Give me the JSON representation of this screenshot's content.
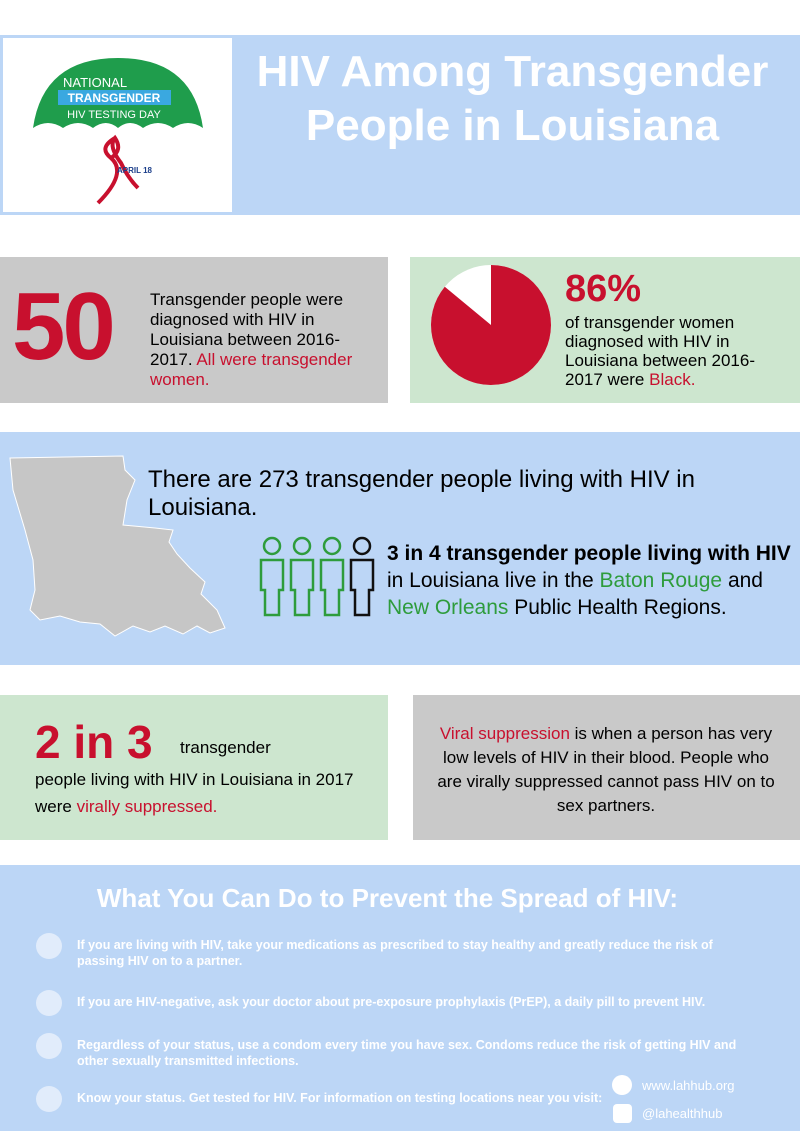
{
  "header": {
    "title": "HIV Among Transgender People in Louisiana",
    "logo": {
      "line1": "NATIONAL",
      "line2": "TRANSGENDER",
      "line3": "HIV TESTING DAY",
      "date": "APRIL 18"
    }
  },
  "diagnosed": {
    "number": "50",
    "text": "Transgender people were diagnosed with HIV in Louisiana between 2016-2017.",
    "highlight": "All were transgender women."
  },
  "black_women": {
    "value": 86,
    "label": "86%",
    "text": "of transgender women diagnosed with HIV in Louisiana between 2016-2017 were",
    "highlight": "Black."
  },
  "living": {
    "text": "There are 273 transgender people living with HIV in Louisiana."
  },
  "regions": {
    "bold": "3 in 4 transgender people living with HIV",
    "text1": "in Louisiana live in the",
    "region1": "Baton Rouge",
    "text2": "and",
    "region2": "New Orleans",
    "text3": "Public Health Regions."
  },
  "suppressed": {
    "number": "2 in 3",
    "text1": "transgender",
    "text2": "people living with HIV in Louisiana in 2017 were",
    "highlight": "virally suppressed."
  },
  "definition": {
    "term": "Viral suppression",
    "text": "is when a person has very low levels of HIV in their blood.  People who are virally suppressed cannot pass HIV on to sex partners."
  },
  "prevention": {
    "title": "What You Can Do to Prevent the Spread of HIV:",
    "items": [
      "If you are living with HIV, take your medications as prescribed to stay healthy and greatly reduce the risk of passing HIV on to a partner.",
      "If you are HIV-negative, ask your doctor about pre-exposure prophylaxis (PrEP), a daily pill to prevent HIV.",
      "Regardless of your status, use a condom every time you have sex.  Condoms reduce the risk of getting HIV and other sexually transmitted infections.",
      "Know your status.  Get tested for HIV.  For information on testing locations near you visit:"
    ],
    "website": "www.lahhub.org",
    "social": "@lahealthhub"
  }
}
